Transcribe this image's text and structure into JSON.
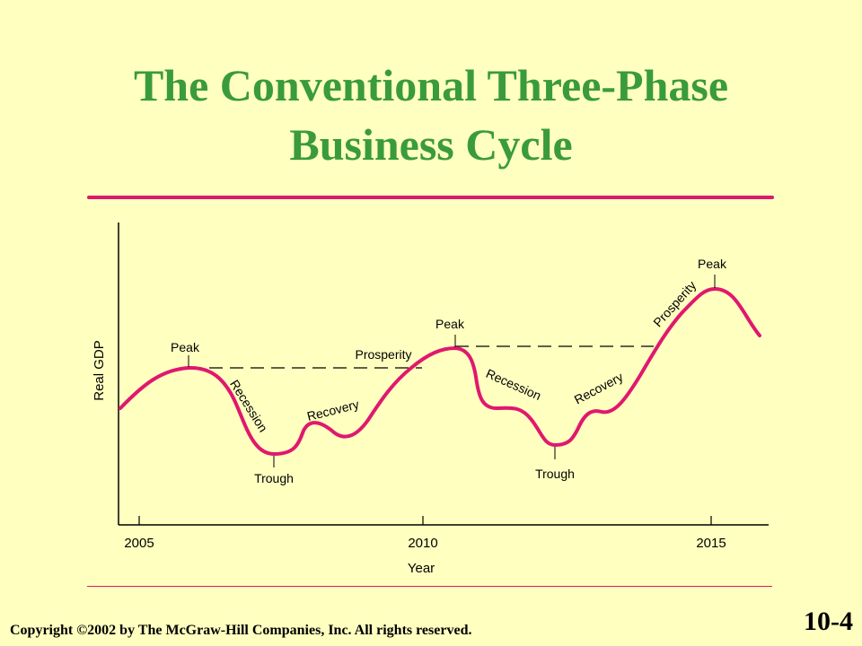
{
  "title": {
    "line1": "The Conventional Three-Phase",
    "line2": "Business Cycle"
  },
  "axes": {
    "ylabel": "Real GDP",
    "xlabel": "Year",
    "ticks": [
      "2005",
      "2010",
      "2015"
    ]
  },
  "labels": {
    "peak": "Peak",
    "trough": "Trough",
    "prosperity": "Prosperity",
    "recession": "Recession",
    "recovery": "Recovery"
  },
  "colors": {
    "background": "#ffffc0",
    "title": "#3a9b3a",
    "curve": "#e0186e",
    "rule": "#d81b6e"
  },
  "footer": {
    "copyright": "Copyright ©2002 by The McGraw-Hill Companies, Inc.  All rights reserved.",
    "slide_number": "10-4"
  }
}
